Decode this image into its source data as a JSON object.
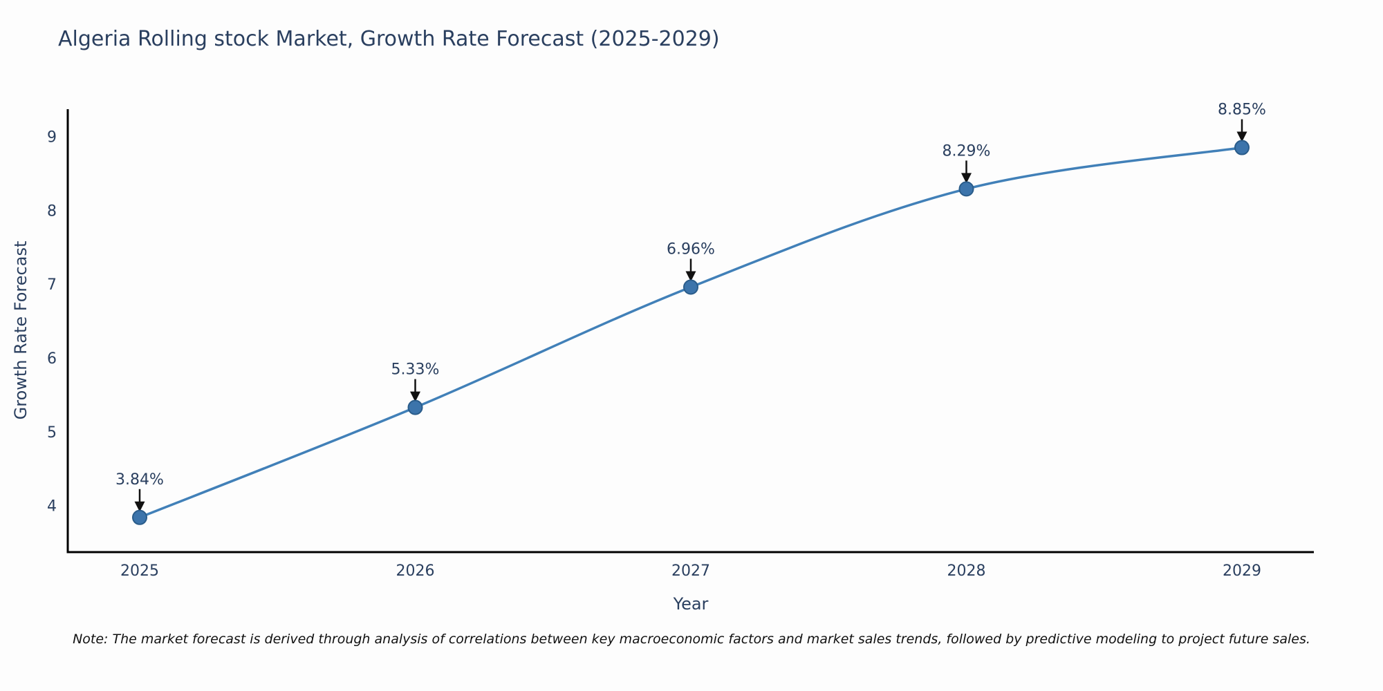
{
  "chart_data": {
    "type": "line",
    "title": "Algeria Rolling stock Market, Growth Rate Forecast (2025-2029)",
    "xlabel": "Year",
    "ylabel": "Growth Rate Forecast",
    "x": [
      "2025",
      "2026",
      "2027",
      "2028",
      "2029"
    ],
    "values": [
      3.84,
      5.33,
      6.96,
      8.29,
      8.85
    ],
    "point_labels": [
      "3.84%",
      "5.33%",
      "6.96%",
      "8.29%",
      "8.85%"
    ],
    "yticks": [
      4,
      5,
      6,
      7,
      8,
      9
    ],
    "ylim": [
      3.37,
      9.37
    ],
    "grid": false,
    "legend": "none",
    "line_shape": "spline",
    "note": "Note: The market forecast is derived through analysis of correlations between key macroeconomic factors and market sales trends, followed by predictive modeling to project future sales.",
    "colors": {
      "line": "#4180b8",
      "marker_fill": "#3c74ab",
      "marker_stroke": "#2a5c8a",
      "axis_line": "#000000",
      "text": "#2a3f5f",
      "arrow": "#111111",
      "note_text": "#111111",
      "background": "#fdfdfd"
    }
  }
}
